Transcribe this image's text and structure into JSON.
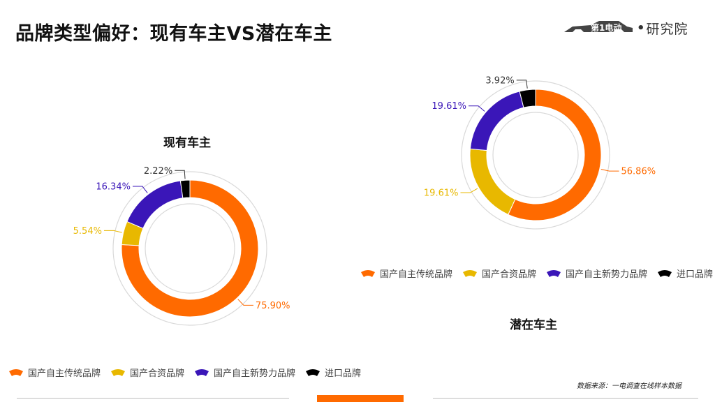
{
  "page": {
    "title": "品牌类型偏好：现有车主VS潜在车主",
    "logo_text": "研究院",
    "logo_mark_text": "第1电动",
    "source": "数据来源：一电调查在线样本数据"
  },
  "colors": {
    "orange": "#ff6a00",
    "yellow": "#e8b800",
    "purple": "#3a16b8",
    "black": "#000000"
  },
  "chart_data": [
    {
      "type": "pie",
      "variant": "donut",
      "title": "现有车主",
      "series": [
        {
          "name": "国产自主传统品牌",
          "value": 75.9,
          "label": "75.90%",
          "color": "#ff6a00"
        },
        {
          "name": "国产合资品牌",
          "value": 5.54,
          "label": "5.54%",
          "color": "#e8b800"
        },
        {
          "name": "国产自主新势力品牌",
          "value": 16.34,
          "label": "16.34%",
          "color": "#3a16b8"
        },
        {
          "name": "进口品牌",
          "value": 2.22,
          "label": "2.22%",
          "color": "#000000"
        }
      ],
      "legend_placement": "bottom"
    },
    {
      "type": "pie",
      "variant": "donut",
      "title": "潜在车主",
      "series": [
        {
          "name": "国产自主传统品牌",
          "value": 56.86,
          "label": "56.86%",
          "color": "#ff6a00"
        },
        {
          "name": "国产合资品牌",
          "value": 19.61,
          "label": "19.61%",
          "color": "#e8b800"
        },
        {
          "name": "国产自主新势力品牌",
          "value": 19.61,
          "label": "19.61%",
          "color": "#3a16b8"
        },
        {
          "name": "进口品牌",
          "value": 3.92,
          "label": "3.92%",
          "color": "#000000"
        }
      ],
      "legend_placement": "top"
    }
  ]
}
